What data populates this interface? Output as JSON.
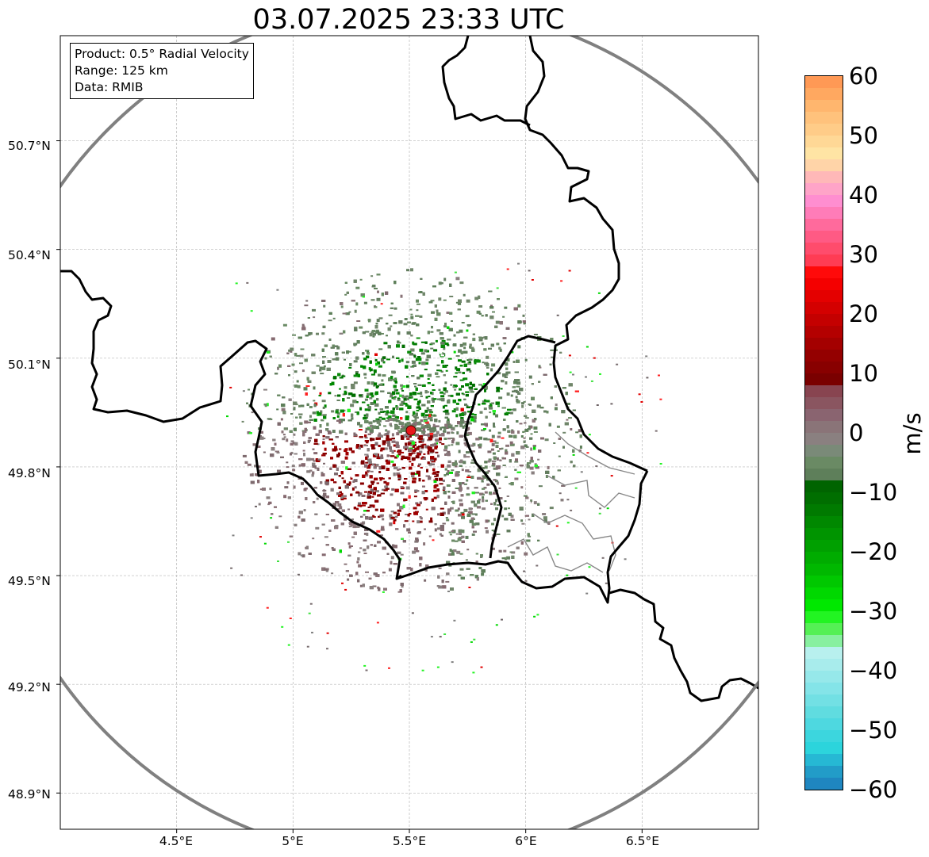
{
  "title": "03.07.2025 23:33 UTC",
  "info_box": {
    "product": "Product: 0.5° Radial Velocity",
    "range": "Range: 125 km",
    "source": "Data: RMIB"
  },
  "map": {
    "lon_range": [
      4.0,
      7.0
    ],
    "lat_range": [
      48.8,
      50.99
    ],
    "radar_site": {
      "lon": 5.505,
      "lat": 49.915,
      "marker_color": "#e8191b"
    },
    "range_ring_km": 125,
    "range_ring_color": "#808080",
    "border_color": "#000000",
    "admin_border_color": "#808080"
  },
  "lat_ticks": [
    {
      "value": 50.7,
      "label": "50.7°N"
    },
    {
      "value": 50.4,
      "label": "50.4°N"
    },
    {
      "value": 50.1,
      "label": "50.1°N"
    },
    {
      "value": 49.8,
      "label": "49.8°N"
    },
    {
      "value": 49.5,
      "label": "49.5°N"
    },
    {
      "value": 49.2,
      "label": "49.2°N"
    },
    {
      "value": 48.9,
      "label": "48.9°N"
    }
  ],
  "lon_ticks": [
    {
      "value": 4.5,
      "label": "4.5°E"
    },
    {
      "value": 5.0,
      "label": "5°E"
    },
    {
      "value": 5.5,
      "label": "5.5°E"
    },
    {
      "value": 6.0,
      "label": "6°E"
    },
    {
      "value": 6.5,
      "label": "6.5°E"
    }
  ],
  "colorbar": {
    "unit": "m/s",
    "min": -60,
    "max": 60,
    "ticks": [
      {
        "value": 60,
        "label": "60"
      },
      {
        "value": 50,
        "label": "50"
      },
      {
        "value": 40,
        "label": "40"
      },
      {
        "value": 30,
        "label": "30"
      },
      {
        "value": 20,
        "label": "20"
      },
      {
        "value": 10,
        "label": "10"
      },
      {
        "value": 0,
        "label": "0"
      },
      {
        "value": -10,
        "label": "−10"
      },
      {
        "value": -20,
        "label": "−20"
      },
      {
        "value": -30,
        "label": "−30"
      },
      {
        "value": -40,
        "label": "−40"
      },
      {
        "value": -50,
        "label": "−50"
      },
      {
        "value": -60,
        "label": "−60"
      }
    ],
    "colors_top_to_bottom": [
      "#ff9955",
      "#ffa860",
      "#ffb66e",
      "#ffc27c",
      "#ffcc88",
      "#ffd896",
      "#ffe4a4",
      "#ffd4a8",
      "#ffb8b8",
      "#ffa4c8",
      "#ff8ed0",
      "#ff7cb8",
      "#ff6a9c",
      "#ff5a84",
      "#ff4c6c",
      "#ff3c54",
      "#ff0a0a",
      "#f40000",
      "#e40000",
      "#d40000",
      "#c40000",
      "#b40000",
      "#a40000",
      "#940000",
      "#880000",
      "#7a0000",
      "#884450",
      "#8a5560",
      "#8a6470",
      "#8a7478",
      "#8a8080",
      "#7a8a78",
      "#6a8a64",
      "#5e7f5a",
      "#006400",
      "#006e00",
      "#007a00",
      "#008800",
      "#009400",
      "#00a000",
      "#00ac00",
      "#00b800",
      "#00c800",
      "#00d800",
      "#00e800",
      "#22f422",
      "#55f055",
      "#88f0a0",
      "#b8f0ee",
      "#a8ecec",
      "#96e8ea",
      "#84e4e8",
      "#72e0e4",
      "#60dce0",
      "#4ed8e0",
      "#3cd6de",
      "#2cd4dc",
      "#26b8d4",
      "#229cc8",
      "#1f86c0"
    ]
  }
}
